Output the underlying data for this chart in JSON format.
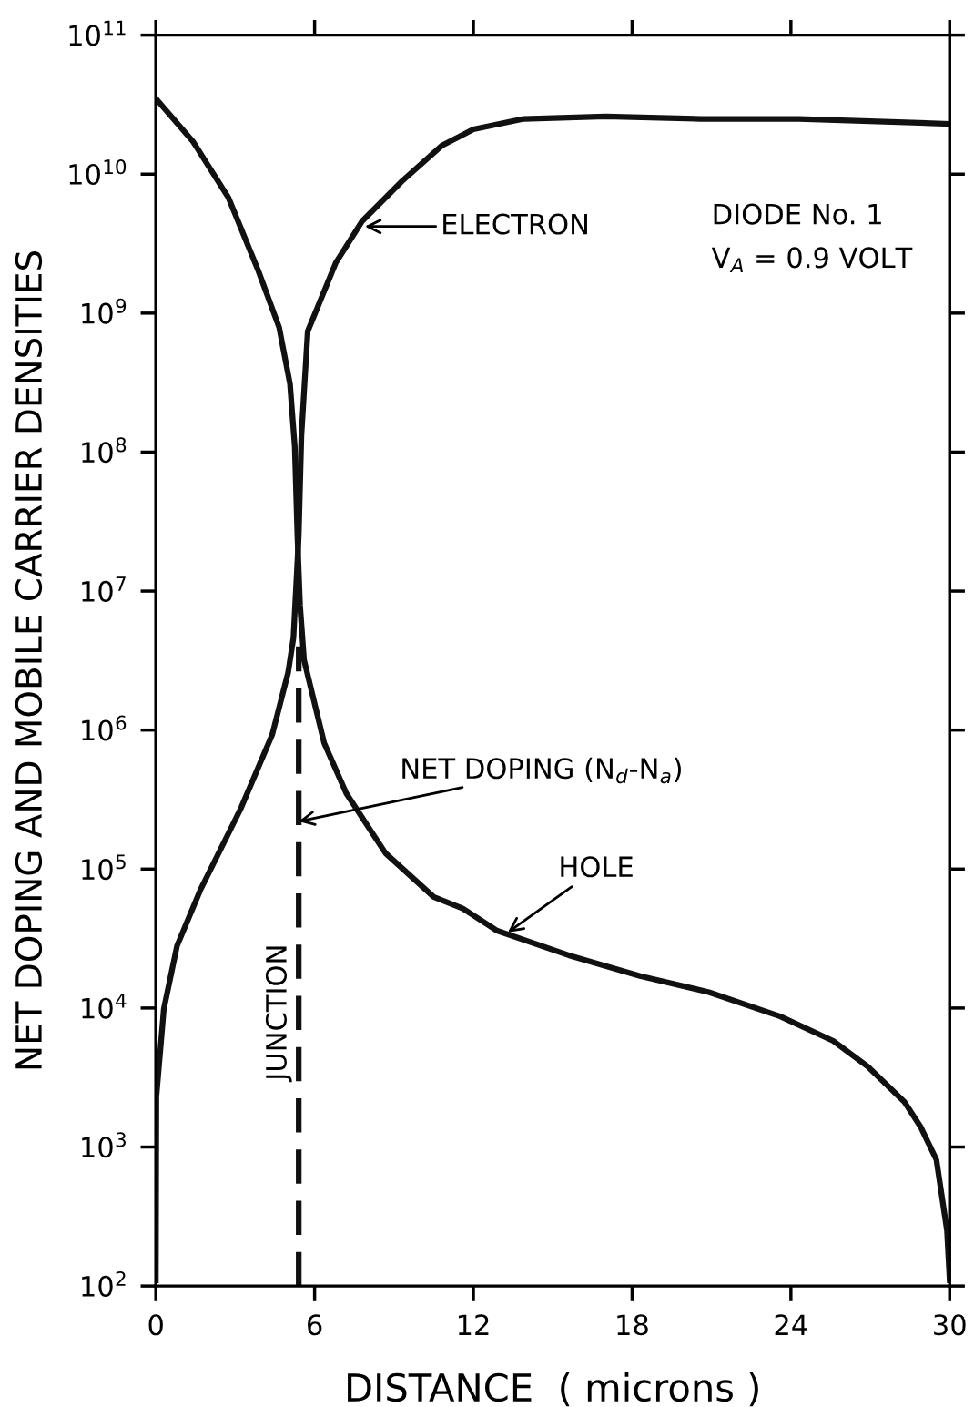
{
  "chart_data": {
    "type": "line",
    "xlabel": "DISTANCE  ( microns )",
    "ylabel": "NET DOPING AND MOBILE CARRIER DENSITIES",
    "log": "y",
    "xlim": [
      0,
      30
    ],
    "ylim": [
      100,
      100000000000
    ],
    "xticks": [
      0,
      6,
      12,
      18,
      24,
      30
    ],
    "yticks": [
      {
        "value": 100,
        "label": "10$^{2}$"
      },
      {
        "value": 1000,
        "label": "10$^{3}$"
      },
      {
        "value": 10000,
        "label": "10$^{4}$"
      },
      {
        "value": 100000,
        "label": "10$^{5}$"
      },
      {
        "value": 1000000,
        "label": "10$^{6}$"
      },
      {
        "value": 10000000,
        "label": "10$^{7}$"
      },
      {
        "value": 100000000,
        "label": "10$^{8}$"
      },
      {
        "value": 1000000000,
        "label": "10$^{9}$"
      },
      {
        "value": 10000000000,
        "label": "10$^{10}$"
      },
      {
        "value": 100000000000,
        "label": "10$^{11}$"
      }
    ],
    "grid": false,
    "line_style": "solid",
    "series": [
      {
        "color": "#111111",
        "x": [
          0,
          0.02,
          0.3,
          0.8,
          1.7,
          3.2,
          4.4,
          5.0,
          5.2,
          5.4,
          5.5,
          5.74,
          6.8,
          7.8,
          9.3,
          10.8,
          12.0,
          13.9,
          17.0,
          20.6,
          24.3,
          30
        ],
        "values": [
          110,
          2300,
          9800,
          28000,
          72000,
          270000,
          930000,
          2600000,
          4600000,
          25000000,
          130000000,
          740000000,
          2300000000,
          4600000000,
          8900000000,
          16000000000,
          21000000000,
          25000000000,
          26000000000,
          25000000000,
          25000000000,
          23000000000
        ]
      },
      {
        "color": "#111111",
        "x": [
          0,
          1.42,
          2.74,
          3.88,
          4.66,
          5.07,
          5.25,
          5.35,
          5.45,
          5.6,
          6.36,
          7.2,
          8.68,
          10.5,
          11.6,
          12.9,
          15.6,
          18.3,
          20.9,
          23.6,
          25.6,
          26.9,
          28.3,
          28.9,
          29.5,
          29.7,
          29.9,
          30.0
        ],
        "values": [
          35000000000,
          17000000000,
          6800000000,
          2000000000,
          790000000,
          310000000,
          110000000,
          25000000,
          7900000,
          3200000,
          810000,
          350000,
          130000,
          63000,
          52000,
          36000,
          24000,
          17000,
          13000,
          8700,
          5800,
          3800,
          2100,
          1400,
          810,
          450,
          250,
          110
        ]
      },
      {
        "color": "#111111",
        "line_style": "dashed",
        "x": [
          5.4,
          5.4
        ],
        "values": [
          100,
          4000000
        ]
      }
    ],
    "annotations": [
      {
        "text": "ELECTRON",
        "x": 7.9,
        "y": 4200000000
      },
      {
        "text": "NET DOPING (N$_{d}$-N$_{a}$)",
        "x": 5.4,
        "y": 220000
      },
      {
        "text": "HOLE",
        "x": 13.3,
        "y": 35000
      },
      {
        "text": "JUNCTION",
        "x": 5.4,
        "y": 3000
      },
      "DIODE No. 1",
      "V$_{A}$ = 0.9 VOLT"
    ]
  }
}
